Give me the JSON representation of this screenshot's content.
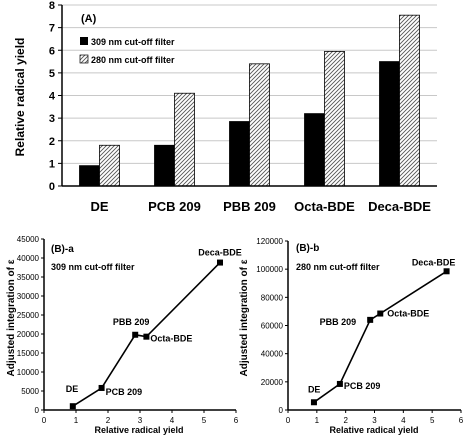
{
  "chart_data": [
    {
      "type": "bar",
      "panel_label": "(A)",
      "ylabel": "Relative radical yield",
      "ylim": [
        0,
        8
      ],
      "yticks": [
        0,
        1,
        2,
        3,
        4,
        5,
        6,
        7,
        8
      ],
      "categories": [
        "DE",
        "PCB 209",
        "PBB 209",
        "Octa-BDE",
        "Deca-BDE"
      ],
      "series": [
        {
          "name": "309 nm cut-off filter",
          "values": [
            0.9,
            1.8,
            2.85,
            3.2,
            5.5
          ],
          "color": "#000000",
          "pattern": "solid"
        },
        {
          "name": "280 nm cut-off filter",
          "values": [
            1.8,
            4.1,
            5.4,
            5.95,
            7.55
          ],
          "color": "#ffffff",
          "pattern": "diagonal-hatch"
        }
      ],
      "legend": "top-left",
      "grid": true
    },
    {
      "type": "line",
      "panel_label": "(B)-a",
      "annotation": "309 nm cut-off filter",
      "xlabel": "Relative radical yield",
      "ylabel": "Adjusted integration of ε",
      "xlim": [
        0,
        6
      ],
      "ylim": [
        0,
        45000
      ],
      "xticks": [
        0,
        1,
        2,
        3,
        4,
        5,
        6
      ],
      "yticks": [
        0,
        5000,
        10000,
        15000,
        20000,
        25000,
        30000,
        35000,
        40000,
        45000
      ],
      "points": [
        {
          "label": "DE",
          "x": 0.9,
          "y": 1000
        },
        {
          "label": "PCB 209",
          "x": 1.8,
          "y": 5800
        },
        {
          "label": "PBB 209",
          "x": 2.85,
          "y": 19800
        },
        {
          "label": "Octa-BDE",
          "x": 3.2,
          "y": 19300
        },
        {
          "label": "Deca-BDE",
          "x": 5.5,
          "y": 38800
        }
      ],
      "grid": false
    },
    {
      "type": "line",
      "panel_label": "(B)-b",
      "annotation": "280 nm cut-off filter",
      "xlabel": "Relative radical yield",
      "ylabel": "Adjusted integration of ε",
      "xlim": [
        0,
        6
      ],
      "ylim": [
        0,
        120000
      ],
      "xticks": [
        0,
        1,
        2,
        3,
        4,
        5,
        6
      ],
      "yticks": [
        0,
        20000,
        40000,
        60000,
        80000,
        100000,
        120000
      ],
      "points": [
        {
          "label": "DE",
          "x": 0.9,
          "y": 5500
        },
        {
          "label": "PCB 209",
          "x": 1.8,
          "y": 18500
        },
        {
          "label": "PBB 209",
          "x": 2.85,
          "y": 64000
        },
        {
          "label": "Octa-BDE",
          "x": 3.2,
          "y": 68500
        },
        {
          "label": "Deca-BDE",
          "x": 5.5,
          "y": 98500
        }
      ],
      "grid": false
    }
  ]
}
